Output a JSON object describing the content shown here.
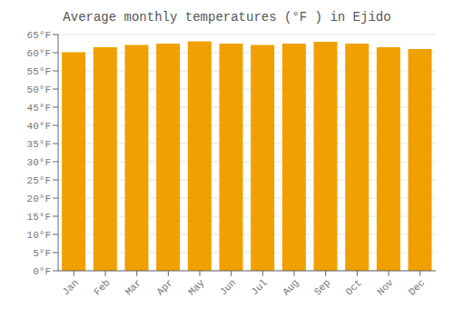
{
  "chart_data": {
    "type": "bar",
    "title": "Average monthly temperatures (°F ) in Ejido",
    "categories": [
      "Jan",
      "Feb",
      "Mar",
      "Apr",
      "May",
      "Jun",
      "Jul",
      "Aug",
      "Sep",
      "Oct",
      "Nov",
      "Dec"
    ],
    "values": [
      60.1,
      61.5,
      62.1,
      62.5,
      63.1,
      62.5,
      62.1,
      62.5,
      63.0,
      62.5,
      61.5,
      61.0
    ],
    "color": "#F0A000",
    "ylim": [
      0,
      65
    ],
    "yticks": [
      {
        "value": 0,
        "label": "0°F"
      },
      {
        "value": 5,
        "label": "5°F"
      },
      {
        "value": 10,
        "label": "10°F"
      },
      {
        "value": 15,
        "label": "15°F"
      },
      {
        "value": 20,
        "label": "20°F"
      },
      {
        "value": 25,
        "label": "25°F"
      },
      {
        "value": 30,
        "label": "30°F"
      },
      {
        "value": 35,
        "label": "35°F"
      },
      {
        "value": 40,
        "label": "40°F"
      },
      {
        "value": 45,
        "label": "45°F"
      },
      {
        "value": 50,
        "label": "50°F"
      },
      {
        "value": 55,
        "label": "55°F"
      },
      {
        "value": 60,
        "label": "60°F"
      },
      {
        "value": 65,
        "label": "65°F"
      }
    ],
    "grid": true
  }
}
